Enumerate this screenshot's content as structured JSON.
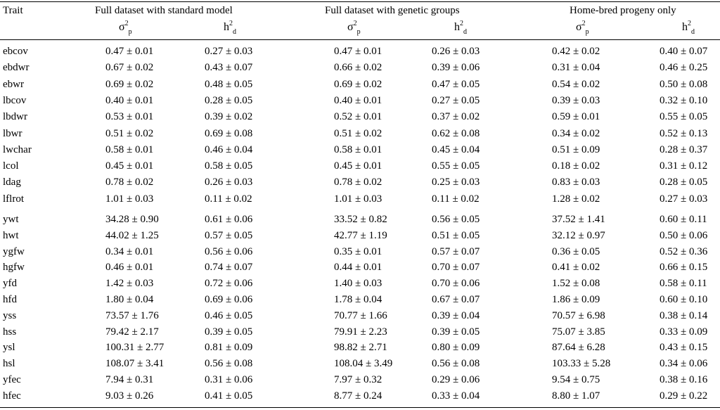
{
  "table": {
    "trait_header": "Trait",
    "groups": [
      "Full dataset with standard model",
      "Full dataset with genetic groups",
      "Home-bred progeny only"
    ],
    "param_symbols": [
      {
        "base": "σ",
        "sup": "2",
        "sub": "p"
      },
      {
        "base": "h",
        "sup": "2",
        "sub": "d"
      },
      {
        "base": "σ",
        "sup": "2",
        "sub": "p"
      },
      {
        "base": "h",
        "sup": "2",
        "sub": "d"
      },
      {
        "base": "σ",
        "sup": "2",
        "sub": "p"
      },
      {
        "base": "h",
        "sup": "2",
        "sub": "d"
      }
    ],
    "rows": [
      {
        "trait": "ebcov",
        "values": [
          "0.47 ± 0.01",
          "0.27 ± 0.03",
          "0.47 ± 0.01",
          "0.26 ± 0.03",
          "0.42 ± 0.02",
          "0.40 ± 0.07"
        ]
      },
      {
        "trait": "ebdwr",
        "values": [
          "0.67 ± 0.02",
          "0.43 ± 0.07",
          "0.66 ± 0.02",
          "0.39 ± 0.06",
          "0.31 ± 0.04",
          "0.46 ± 0.25"
        ]
      },
      {
        "trait": "ebwr",
        "values": [
          "0.69 ± 0.02",
          "0.48 ± 0.05",
          "0.69 ± 0.02",
          "0.47 ± 0.05",
          "0.54 ± 0.02",
          "0.50 ± 0.08"
        ]
      },
      {
        "trait": "lbcov",
        "values": [
          "0.40 ± 0.01",
          "0.28 ± 0.05",
          "0.40 ± 0.01",
          "0.27 ± 0.05",
          "0.39 ± 0.03",
          "0.32 ± 0.10"
        ]
      },
      {
        "trait": "lbdwr",
        "values": [
          "0.53 ± 0.01",
          "0.39 ± 0.02",
          "0.52 ± 0.01",
          "0.37 ± 0.02",
          "0.59 ± 0.01",
          "0.55 ± 0.05"
        ]
      },
      {
        "trait": "lbwr",
        "values": [
          "0.51 ± 0.02",
          "0.69 ± 0.08",
          "0.51 ± 0.02",
          "0.62 ± 0.08",
          "0.34 ± 0.02",
          "0.52 ± 0.13"
        ]
      },
      {
        "trait": "lwchar",
        "values": [
          "0.58 ± 0.01",
          "0.46 ± 0.04",
          "0.58 ± 0.01",
          "0.45 ± 0.04",
          "0.51 ± 0.09",
          "0.28 ± 0.37"
        ]
      },
      {
        "trait": "lcol",
        "values": [
          "0.45 ± 0.01",
          "0.58 ± 0.05",
          "0.45 ± 0.01",
          "0.55 ± 0.05",
          "0.18 ± 0.02",
          "0.31 ± 0.12"
        ]
      },
      {
        "trait": "ldag",
        "values": [
          "0.78 ± 0.02",
          "0.26 ± 0.03",
          "0.78 ± 0.02",
          "0.25 ± 0.03",
          "0.83 ± 0.03",
          "0.28 ± 0.05"
        ]
      },
      {
        "trait": "lflrot",
        "values": [
          "1.01 ± 0.03",
          "0.11 ± 0.02",
          "1.01 ± 0.03",
          "0.11 ± 0.02",
          "1.28 ± 0.02",
          "0.27 ± 0.03"
        ]
      },
      {
        "trait": "ywt",
        "values": [
          "34.28 ± 0.90",
          "0.61 ± 0.06",
          "33.52 ± 0.82",
          "0.56 ± 0.05",
          "37.52 ± 1.41",
          "0.60 ± 0.11"
        ]
      },
      {
        "trait": "hwt",
        "values": [
          "44.02 ± 1.25",
          "0.57 ± 0.05",
          "42.77 ± 1.19",
          "0.51 ± 0.05",
          "32.12 ± 0.97",
          "0.50 ± 0.06"
        ]
      },
      {
        "trait": "ygfw",
        "values": [
          "0.34 ± 0.01",
          "0.56 ± 0.06",
          "0.35 ± 0.01",
          "0.57 ± 0.07",
          "0.36 ± 0.05",
          "0.52 ± 0.36"
        ]
      },
      {
        "trait": "hgfw",
        "values": [
          "0.46 ± 0.01",
          "0.74 ± 0.07",
          "0.44 ± 0.01",
          "0.70 ± 0.07",
          "0.41 ± 0.02",
          "0.66 ± 0.15"
        ]
      },
      {
        "trait": "yfd",
        "values": [
          "1.42 ± 0.03",
          "0.72 ± 0.06",
          "1.40 ± 0.03",
          "0.70 ± 0.06",
          "1.52 ± 0.08",
          "0.58 ± 0.11"
        ]
      },
      {
        "trait": "hfd",
        "values": [
          "1.80 ± 0.04",
          "0.69 ± 0.06",
          "1.78 ± 0.04",
          "0.67 ± 0.07",
          "1.86 ± 0.09",
          "0.60 ± 0.10"
        ]
      },
      {
        "trait": "yss",
        "values": [
          "73.57 ± 1.76",
          "0.46 ± 0.05",
          "70.77 ± 1.66",
          "0.39 ± 0.04",
          "70.57 ± 6.98",
          "0.38 ± 0.14"
        ]
      },
      {
        "trait": "hss",
        "values": [
          "79.42 ± 2.17",
          "0.39 ± 0.05",
          "79.91 ± 2.23",
          "0.39 ± 0.05",
          "75.07 ± 3.85",
          "0.33 ± 0.09"
        ]
      },
      {
        "trait": "ysl",
        "values": [
          "100.31 ± 2.77",
          "0.81 ± 0.09",
          "98.82 ± 2.71",
          "0.80 ± 0.09",
          "87.64 ± 6.28",
          "0.43 ± 0.15"
        ]
      },
      {
        "trait": "hsl",
        "values": [
          "108.07 ± 3.41",
          "0.56 ± 0.08",
          "108.04 ± 3.49",
          "0.56 ± 0.08",
          "103.33 ± 5.28",
          "0.34 ± 0.06"
        ]
      },
      {
        "trait": "yfec",
        "values": [
          "7.94 ± 0.31",
          "0.31 ± 0.06",
          "7.97 ± 0.32",
          "0.29 ± 0.06",
          "9.54 ± 0.75",
          "0.38 ± 0.16"
        ]
      },
      {
        "trait": "hfec",
        "values": [
          "9.03 ± 0.26",
          "0.41 ± 0.05",
          "8.77 ± 0.24",
          "0.33 ± 0.04",
          "8.80 ± 1.07",
          "0.29 ± 0.22"
        ]
      }
    ]
  }
}
